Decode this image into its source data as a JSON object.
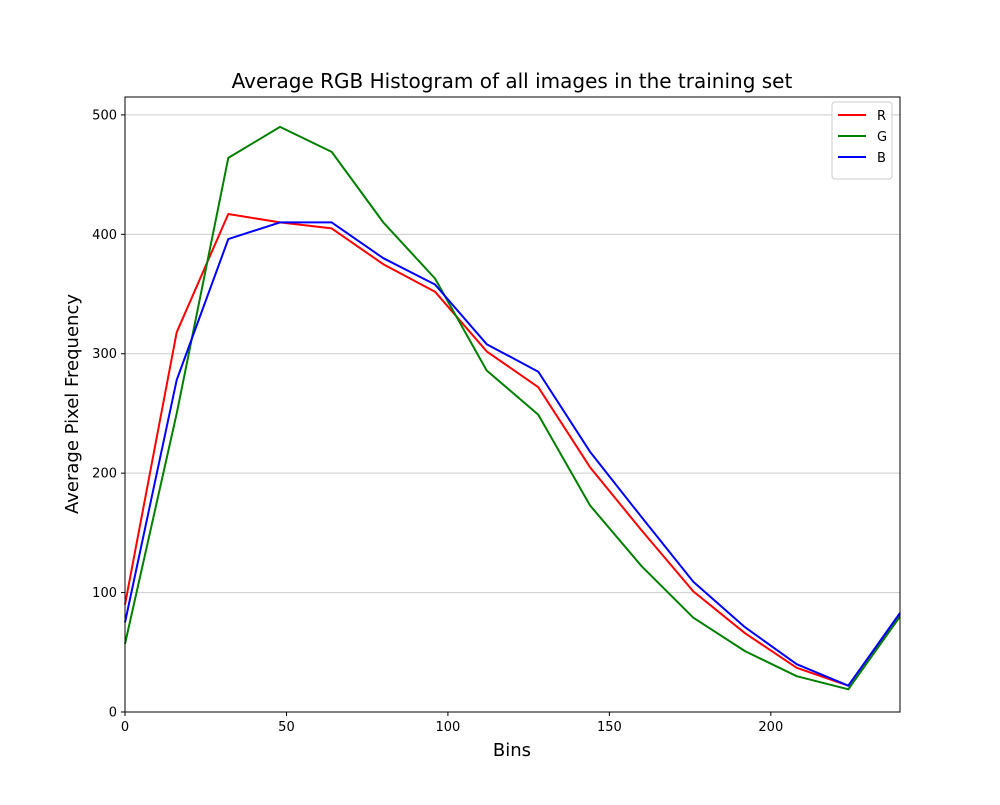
{
  "chart_data": {
    "type": "line",
    "title": "Average RGB Histogram of all images in the training set",
    "xlabel": "Bins",
    "ylabel": "Average Pixel Frequency",
    "xlim": [
      0,
      240
    ],
    "ylim": [
      0,
      515
    ],
    "xticks": [
      0,
      50,
      100,
      150,
      200
    ],
    "yticks": [
      0,
      100,
      200,
      300,
      400,
      500
    ],
    "grid": "y-axis only",
    "legend_position": "top-right",
    "x": [
      0,
      16,
      32,
      48,
      64,
      80,
      96,
      112,
      128,
      144,
      160,
      176,
      192,
      208,
      224,
      240
    ],
    "series": [
      {
        "name": "R",
        "color": "#ff0000",
        "values": [
          90,
          318,
          417,
          410,
          405,
          375,
          352,
          302,
          272,
          205,
          152,
          101,
          66,
          37,
          22,
          82
        ]
      },
      {
        "name": "G",
        "color": "#008000",
        "values": [
          57,
          250,
          464,
          490,
          469,
          410,
          363,
          286,
          249,
          173,
          122,
          79,
          51,
          30,
          19,
          80
        ]
      },
      {
        "name": "B",
        "color": "#0000ff",
        "values": [
          75,
          278,
          396,
          410,
          410,
          380,
          358,
          308,
          285,
          218,
          163,
          109,
          71,
          40,
          22,
          83
        ]
      }
    ]
  }
}
